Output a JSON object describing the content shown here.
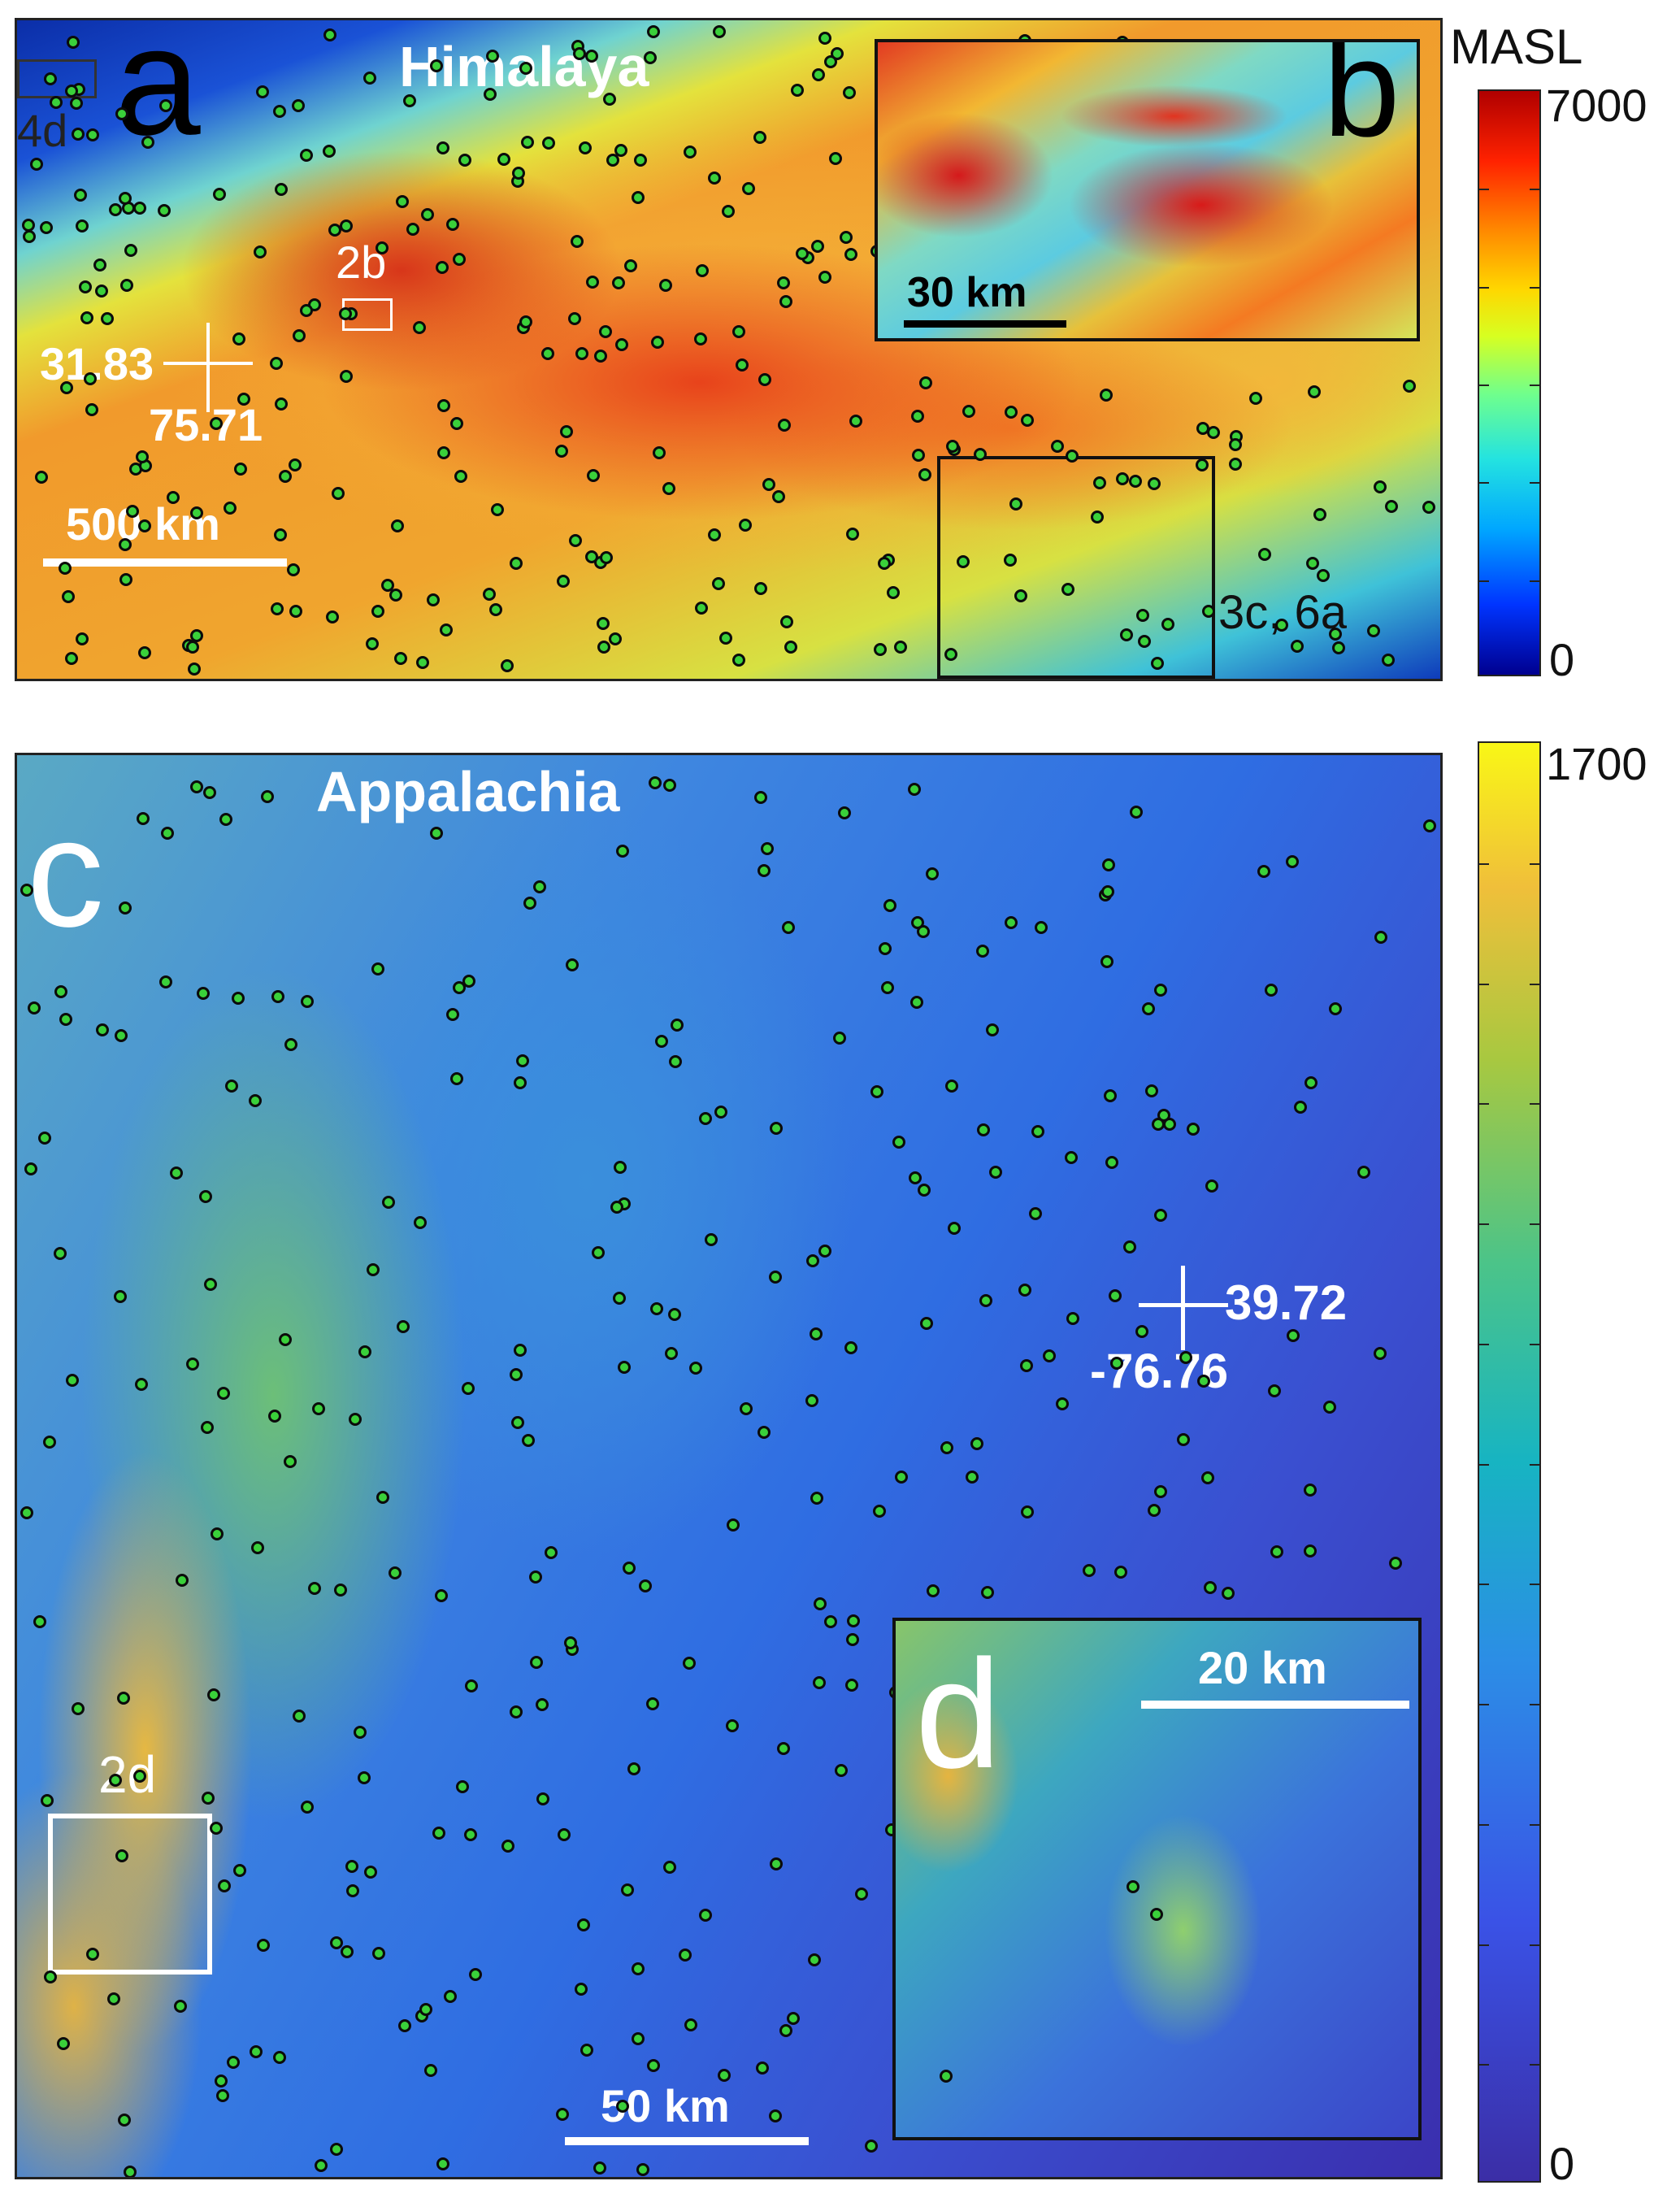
{
  "panel_a": {
    "title": "Himalaya",
    "letter": "a",
    "ref_4d": "4d",
    "ref_2b": "2b",
    "ref_3c6a": "3c, 6a",
    "marker_lat": "31.83",
    "marker_lon": "75.71",
    "scale_label": "500 km"
  },
  "inset_b": {
    "letter": "b",
    "scale_label": "30 km"
  },
  "colorbar_a": {
    "title": "MASL",
    "max": "7000",
    "min": "0"
  },
  "panel_c": {
    "title": "Appalachia",
    "letter": "c",
    "ref_2d": "2d",
    "marker_lat": "39.72",
    "marker_lon": "-76.76",
    "scale_label": "50 km"
  },
  "inset_d": {
    "letter": "d",
    "scale_label": "20 km"
  },
  "colorbar_c": {
    "max": "1700",
    "min": "0"
  },
  "colors": {
    "dot_fill": "#3ad03a",
    "dot_stroke": "#0b0b0b"
  }
}
